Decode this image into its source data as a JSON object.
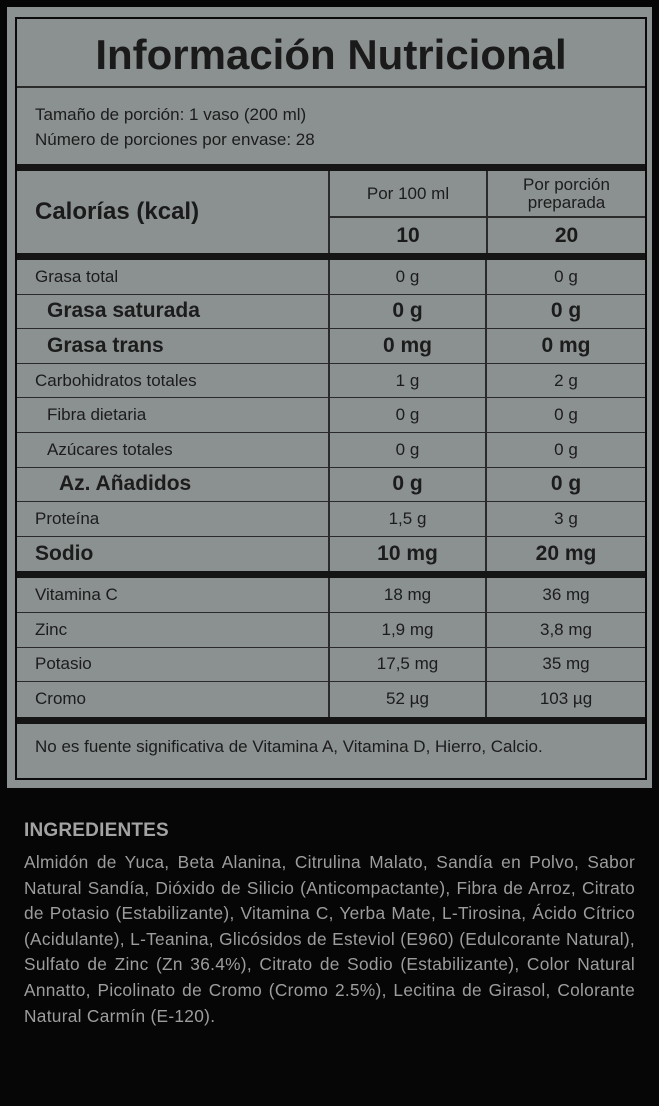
{
  "title": "Información Nutricional",
  "serving_size": "Tamaño de porción: 1 vaso (200 ml)",
  "servings_per_container": "Número de porciones por envase: 28",
  "calories": {
    "label": "Calorías (kcal)",
    "col1_header": "Por 100 ml",
    "col2_header": "Por porción preparada",
    "per_100ml": "10",
    "per_serving": "20"
  },
  "nutrients": [
    {
      "name": "Grasa total",
      "per_100ml": "0 g",
      "per_serving": "0 g",
      "bold": false,
      "indent": 0
    },
    {
      "name": "Grasa saturada",
      "per_100ml": "0 g",
      "per_serving": "0 g",
      "bold": true,
      "indent": 1
    },
    {
      "name": "Grasa trans",
      "per_100ml": "0 mg",
      "per_serving": "0 mg",
      "bold": true,
      "indent": 1
    },
    {
      "name": "Carbohidratos totales",
      "per_100ml": "1 g",
      "per_serving": "2 g",
      "bold": false,
      "indent": 0
    },
    {
      "name": "Fibra dietaria",
      "per_100ml": "0 g",
      "per_serving": "0 g",
      "bold": false,
      "indent": 1
    },
    {
      "name": "Azúcares totales",
      "per_100ml": "0 g",
      "per_serving": "0 g",
      "bold": false,
      "indent": 1
    },
    {
      "name": "Az. Añadidos",
      "per_100ml": "0 g",
      "per_serving": "0 g",
      "bold": true,
      "indent": 2
    },
    {
      "name": "Proteína",
      "per_100ml": "1,5 g",
      "per_serving": "3 g",
      "bold": false,
      "indent": 0
    },
    {
      "name": "Sodio",
      "per_100ml": "10 mg",
      "per_serving": "20 mg",
      "bold": true,
      "indent": 0
    }
  ],
  "micronutrients": [
    {
      "name": "Vitamina C",
      "per_100ml": "18 mg",
      "per_serving": "36 mg"
    },
    {
      "name": "Zinc",
      "per_100ml": "1,9 mg",
      "per_serving": "3,8 mg"
    },
    {
      "name": "Potasio",
      "per_100ml": "17,5 mg",
      "per_serving": "35 mg"
    },
    {
      "name": "Cromo",
      "per_100ml": "52 µg",
      "per_serving": "103 µg"
    }
  ],
  "footnote": "No es fuente significativa de Vitamina A, Vitamina D, Hierro, Calcio.",
  "ingredients": {
    "heading": "INGREDIENTES",
    "text": "Almidón de Yuca, Beta Alanina, Citrulina Malato, Sandía en Polvo, Sabor Natural Sandía, Dióxido de Silicio (Anticompactante), Fibra de Arroz, Citrato de Potasio (Estabilizante), Vitamina C, Yerba Mate, L-Tirosina, Ácido Cítrico (Acidulante), L-Teanina, Glicósidos de Esteviol (E960) (Edulcorante Natural), Sulfato de Zinc (Zn 36.4%), Citrato de Sodio (Estabilizante), Color Natural Annatto, Picolinato de Cromo (Cromo 2.5%), Lecitina de Girasol, Colorante Natural Carmín (E-120)."
  },
  "colors": {
    "background": "#060606",
    "panel": "#8b9090",
    "rules": "#151515",
    "ingredients_text": "#9d9d9d"
  }
}
